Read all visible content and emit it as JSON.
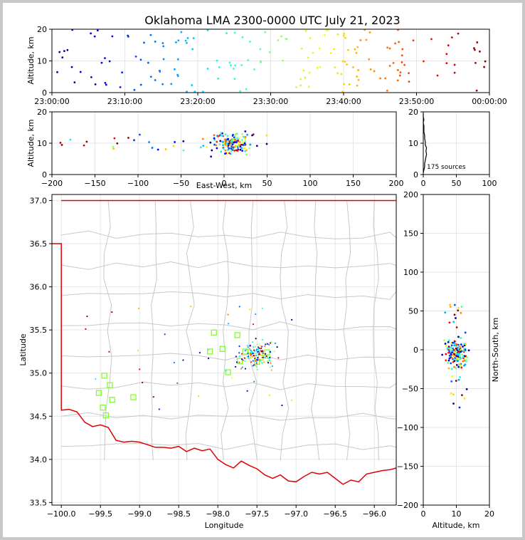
{
  "chart_data": [
    {
      "id": "time-height",
      "type": "scatter",
      "title": "Oklahoma LMA 2300-0000 UTC July 21, 2023",
      "xlabel": "",
      "ylabel": "Altitude, km",
      "x_ticks": [
        "23:00:00",
        "23:10:00",
        "23:20:00",
        "23:30:00",
        "23:40:00",
        "23:50:00",
        "00:00:00"
      ],
      "xlim": [
        0,
        60
      ],
      "ylim": [
        0,
        20
      ],
      "y_ticks": [
        0,
        10,
        20
      ],
      "grid": true
    },
    {
      "id": "ew-altitude",
      "type": "scatter",
      "xlabel": "East-West, km",
      "ylabel": "Altitude, km",
      "xlim": [
        -200,
        200
      ],
      "x_ticks": [
        -200,
        -150,
        -100,
        -50,
        0,
        50,
        100,
        150,
        200
      ],
      "ylim": [
        0,
        20
      ],
      "y_ticks": [
        0,
        10,
        20
      ],
      "grid": true
    },
    {
      "id": "altitude-histogram",
      "type": "line",
      "annotation": "175 sources",
      "xlim": [
        0,
        100
      ],
      "x_ticks": [
        0,
        50,
        100
      ],
      "ylim": [
        0,
        20
      ],
      "y_ticks": [
        0,
        10,
        20
      ],
      "grid": true
    },
    {
      "id": "plan-view",
      "type": "scatter",
      "xlabel": "Longitude",
      "ylabel": "Latitude",
      "xlim": [
        -100.12,
        -95.72
      ],
      "ylim": [
        33.47,
        37.07
      ],
      "x_ticks": [
        "−100.0",
        "−99.5",
        "−99.0",
        "−98.5",
        "−98.0",
        "−97.5",
        "−97.0",
        "−96.5",
        "−96.0"
      ],
      "y_ticks": [
        "33.5",
        "34.0",
        "34.5",
        "35.0",
        "35.5",
        "36.0",
        "36.5",
        "37.0"
      ],
      "grid": true
    },
    {
      "id": "ns-altitude",
      "type": "scatter",
      "xlabel": "Altitude, km",
      "ylabel": "North-South, km",
      "xlim": [
        0,
        20
      ],
      "x_ticks": [
        0,
        10,
        20
      ],
      "ylim": [
        -200,
        200
      ],
      "y_ticks": [
        -200,
        -150,
        -100,
        -50,
        0,
        50,
        100,
        150,
        200
      ],
      "grid": true
    }
  ]
}
